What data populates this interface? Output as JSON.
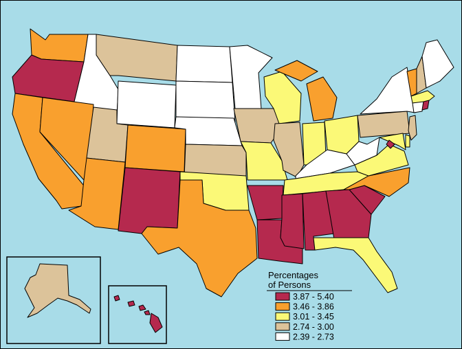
{
  "legend": {
    "title_line1": "Percentages",
    "title_line2": "of Persons",
    "items": [
      {
        "label": "3.87 - 5.40",
        "color": "#b5294e"
      },
      {
        "label": "3.46 - 3.86",
        "color": "#f9a02e"
      },
      {
        "label": "3.01 - 3.45",
        "color": "#fbf977"
      },
      {
        "label": "2.74 - 3.00",
        "color": "#dcc39a"
      },
      {
        "label": "2.39 - 2.73",
        "color": "#ffffff"
      }
    ]
  },
  "colors": {
    "water": "#a8dce8",
    "border": "#000000"
  }
}
